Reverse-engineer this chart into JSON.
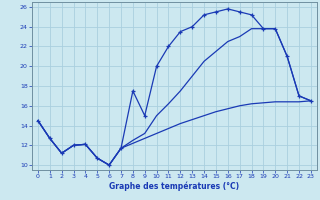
{
  "title": "Graphe des températures (°C)",
  "bg_color": "#cce8f0",
  "grid_color": "#aacfdf",
  "line_color": "#1a3ab5",
  "spine_color": "#7090a0",
  "xlim": [
    -0.5,
    23.5
  ],
  "ylim": [
    9.5,
    26.5
  ],
  "xticks": [
    0,
    1,
    2,
    3,
    4,
    5,
    6,
    7,
    8,
    9,
    10,
    11,
    12,
    13,
    14,
    15,
    16,
    17,
    18,
    19,
    20,
    21,
    22,
    23
  ],
  "yticks": [
    10,
    12,
    14,
    16,
    18,
    20,
    22,
    24,
    26
  ],
  "curve1_x": [
    0,
    1,
    2,
    3,
    4,
    5,
    6,
    7,
    8,
    9,
    10,
    11,
    12,
    13,
    14,
    15,
    16,
    17,
    18,
    19,
    20,
    21,
    22,
    23
  ],
  "curve1_y": [
    14.5,
    12.7,
    11.2,
    12.0,
    12.1,
    10.7,
    10.0,
    11.7,
    17.5,
    15.0,
    20.0,
    22.0,
    23.5,
    24.0,
    25.2,
    25.5,
    25.8,
    25.5,
    25.2,
    23.8,
    23.8,
    21.0,
    17.0,
    16.5
  ],
  "curve2_x": [
    0,
    1,
    2,
    3,
    4,
    5,
    6,
    7,
    8,
    9,
    10,
    11,
    12,
    13,
    14,
    15,
    16,
    17,
    18,
    19,
    20,
    21,
    22,
    23
  ],
  "curve2_y": [
    14.5,
    12.7,
    11.2,
    12.0,
    12.1,
    10.7,
    10.0,
    11.7,
    12.5,
    13.2,
    15.0,
    16.2,
    17.5,
    19.0,
    20.5,
    21.5,
    22.5,
    23.0,
    23.8,
    23.8,
    23.8,
    21.0,
    17.0,
    16.5
  ],
  "curve3_x": [
    0,
    1,
    2,
    3,
    4,
    5,
    6,
    7,
    8,
    9,
    10,
    11,
    12,
    13,
    14,
    15,
    16,
    17,
    18,
    19,
    20,
    21,
    22,
    23
  ],
  "curve3_y": [
    14.5,
    12.7,
    11.2,
    12.0,
    12.1,
    10.7,
    10.0,
    11.7,
    12.2,
    12.7,
    13.2,
    13.7,
    14.2,
    14.6,
    15.0,
    15.4,
    15.7,
    16.0,
    16.2,
    16.3,
    16.4,
    16.4,
    16.4,
    16.5
  ]
}
